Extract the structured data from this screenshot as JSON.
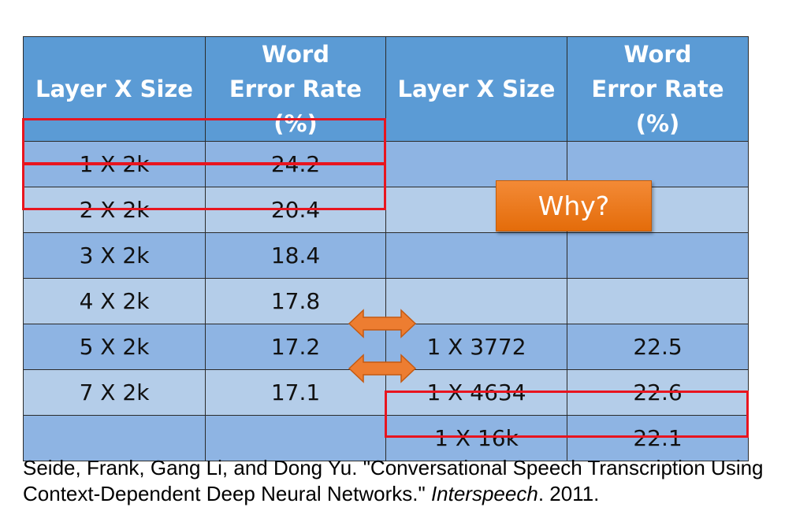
{
  "table": {
    "headers": [
      "Layer X Size",
      "Word Error Rate (%)",
      "Layer X Size",
      "Word Error Rate (%)"
    ],
    "rows": [
      [
        "1 X 2k",
        "24.2",
        "",
        ""
      ],
      [
        "2 X 2k",
        "20.4",
        "",
        ""
      ],
      [
        "3 X 2k",
        "18.4",
        "",
        ""
      ],
      [
        "4 X 2k",
        "17.8",
        "",
        ""
      ],
      [
        "5 X 2k",
        "17.2",
        "1 X 3772",
        "22.5"
      ],
      [
        "7 X 2k",
        "17.1",
        "1 X 4634",
        "22.6"
      ],
      [
        "",
        "",
        "1 X 16k",
        "22.1"
      ]
    ]
  },
  "callout": {
    "label": "Why?"
  },
  "citation": {
    "before": "Seide, Frank, Gang Li, and Dong Yu. \"Conversational Speech Transcription Using Context-Dependent Deep Neural Networks.\" ",
    "venue": "Interspeech",
    "after": ". 2011."
  },
  "colors": {
    "header_bg": "#5b9bd5",
    "row_dark": "#8eb4e3",
    "row_light": "#b4cde9",
    "highlight": "#e8151f",
    "arrow": "#ed7d31"
  }
}
